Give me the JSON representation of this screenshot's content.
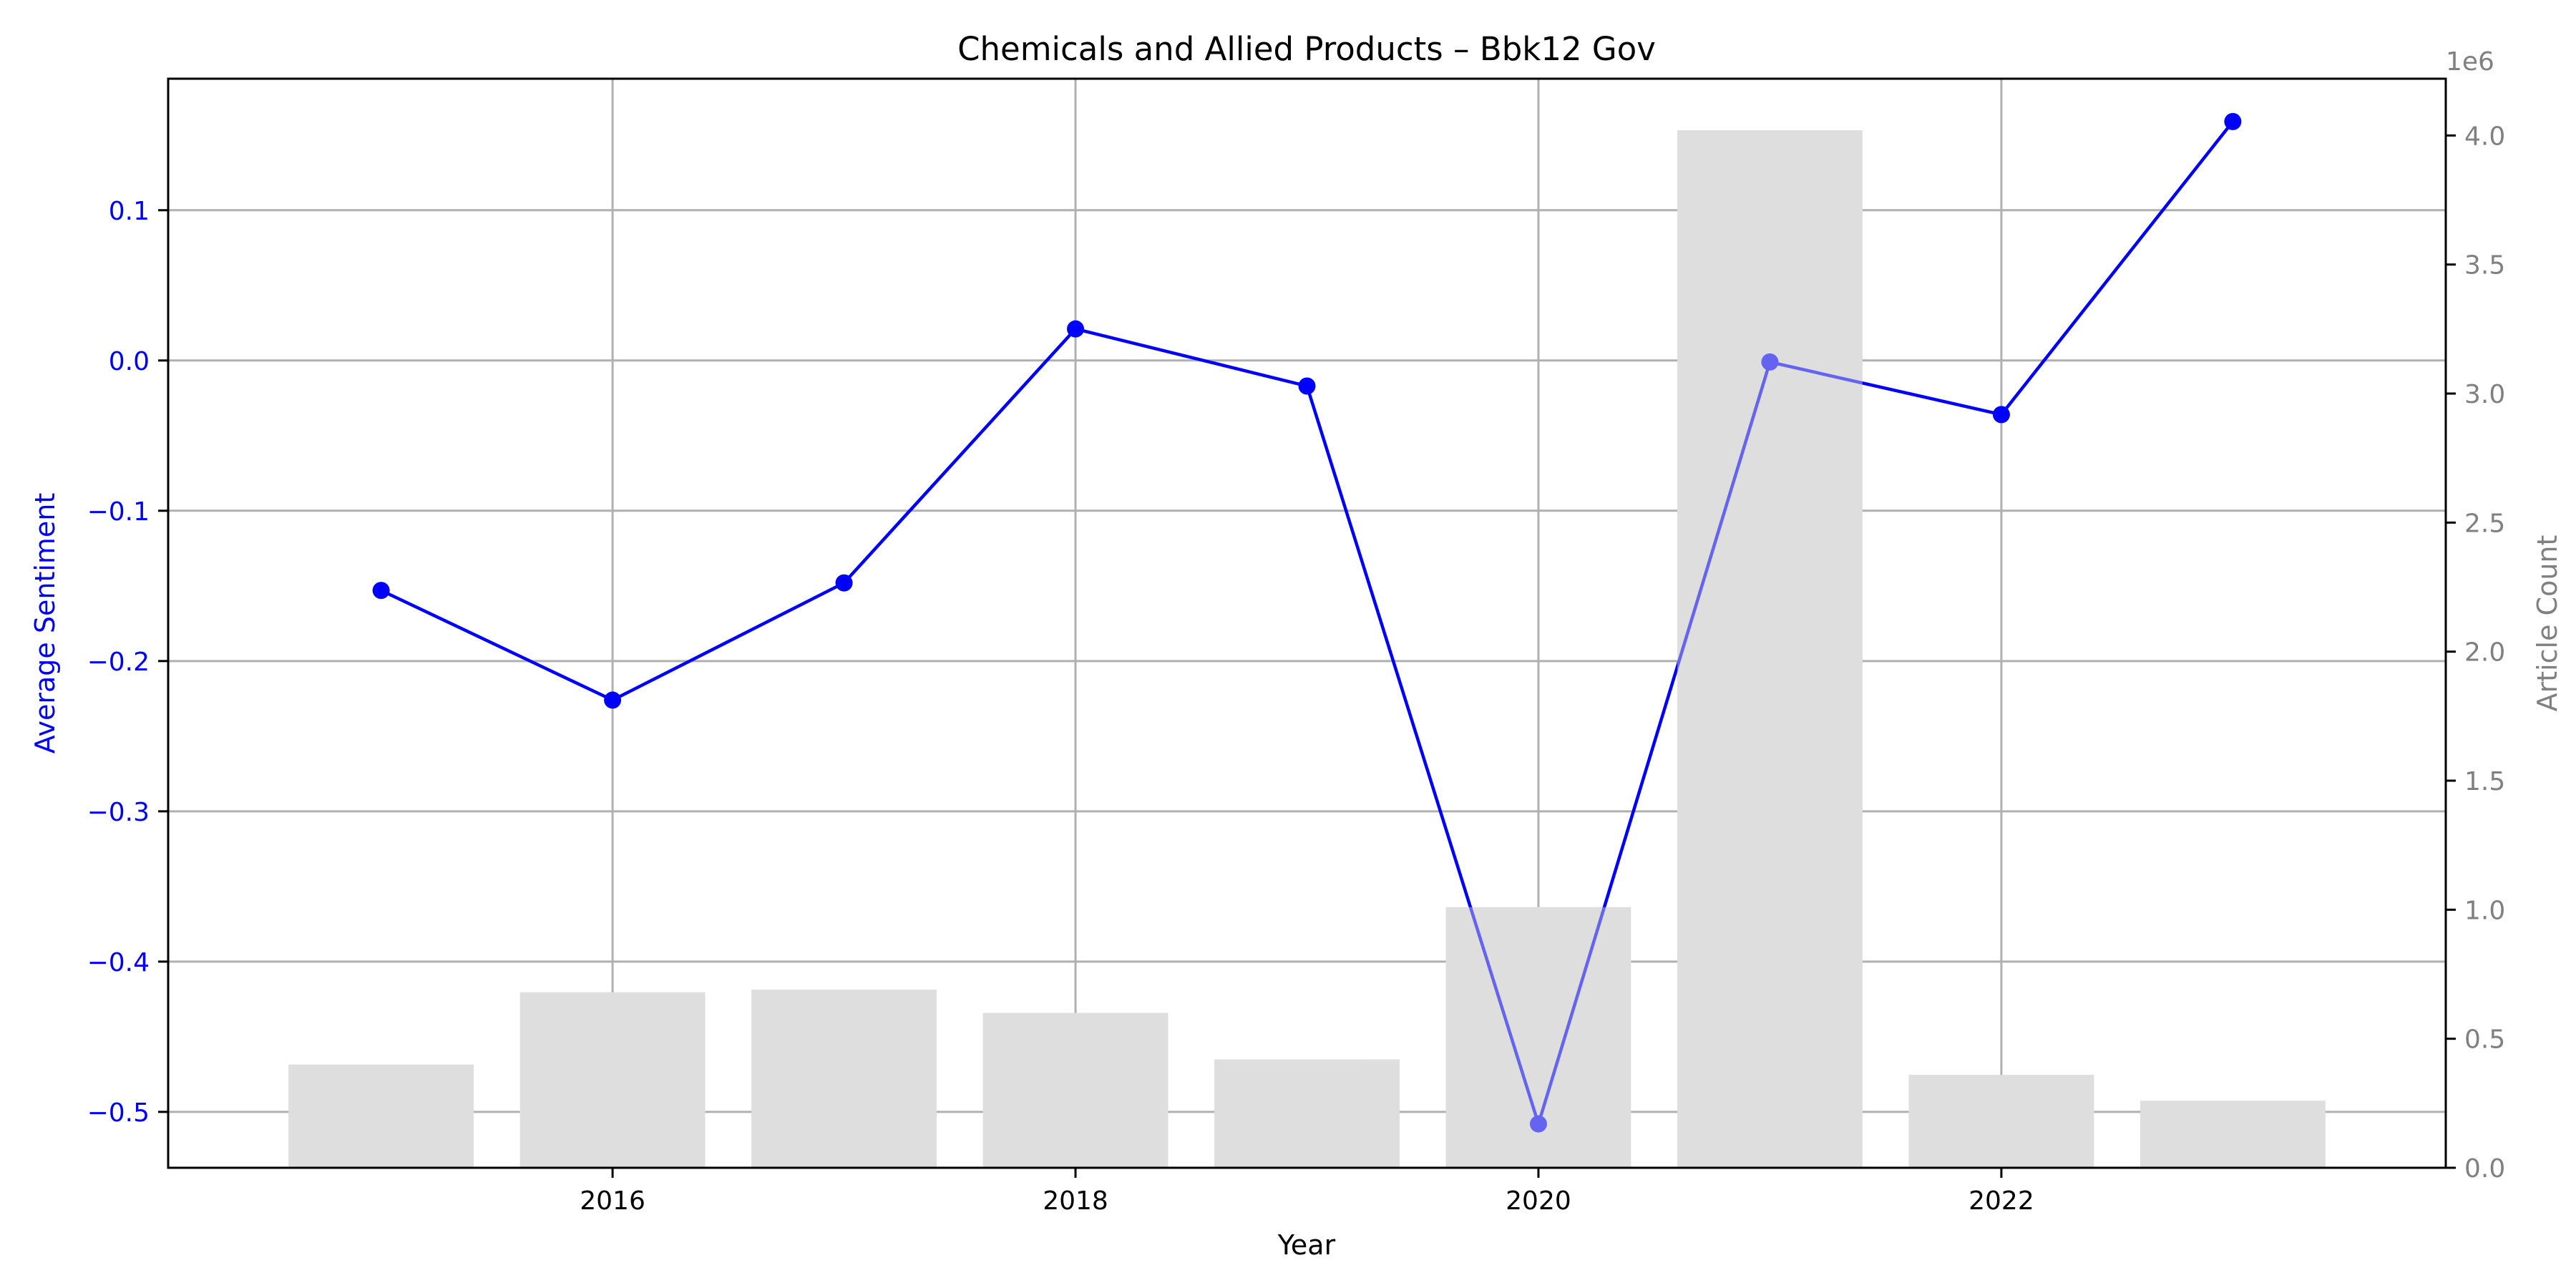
{
  "chart_data": {
    "type": "bar+line",
    "title": "Chemicals and Allied Products – Bbk12 Gov",
    "xlabel": "Year",
    "ylabel_left": "Average Sentiment",
    "ylabel_right": "Article Count",
    "right_axis_offset_label": "1e6",
    "xlim": [
      2014.08,
      2023.92
    ],
    "ylim_left": [
      -0.5372,
      0.1875
    ],
    "ylim_right": [
      0,
      4.22
    ],
    "x_ticks": [
      2016,
      2018,
      2020,
      2022
    ],
    "x_tick_labels": [
      "2016",
      "2018",
      "2020",
      "2022"
    ],
    "left_ticks": [
      0.1,
      0.0,
      -0.1,
      -0.2,
      -0.3,
      -0.4,
      -0.5
    ],
    "left_tick_labels": [
      "0.1",
      "0.0",
      "−0.1",
      "−0.2",
      "−0.3",
      "−0.4",
      "−0.5"
    ],
    "right_ticks": [
      4.0,
      3.5,
      3.0,
      2.5,
      2.0,
      1.5,
      1.0,
      0.5,
      0.0
    ],
    "right_tick_labels": [
      "4.0",
      "3.5",
      "3.0",
      "2.5",
      "2.0",
      "1.5",
      "1.0",
      "0.5",
      "0.0"
    ],
    "grid": true,
    "x": [
      2015,
      2016,
      2017,
      2018,
      2019,
      2020,
      2021,
      2022,
      2023
    ],
    "series": [
      {
        "kind": "bar",
        "axis": "right",
        "values": [
          0.4,
          0.68,
          0.69,
          0.6,
          0.42,
          1.01,
          4.02,
          0.36,
          0.26
        ]
      },
      {
        "kind": "line",
        "axis": "left",
        "values": [
          -0.153,
          -0.226,
          -0.148,
          0.021,
          -0.017,
          -0.508,
          -0.001,
          -0.036,
          0.159
        ]
      }
    ],
    "colors": {
      "line": "#0000ff",
      "bar": "#dedede",
      "right_axis": "#808080",
      "left_axis": "#0000ff"
    }
  }
}
